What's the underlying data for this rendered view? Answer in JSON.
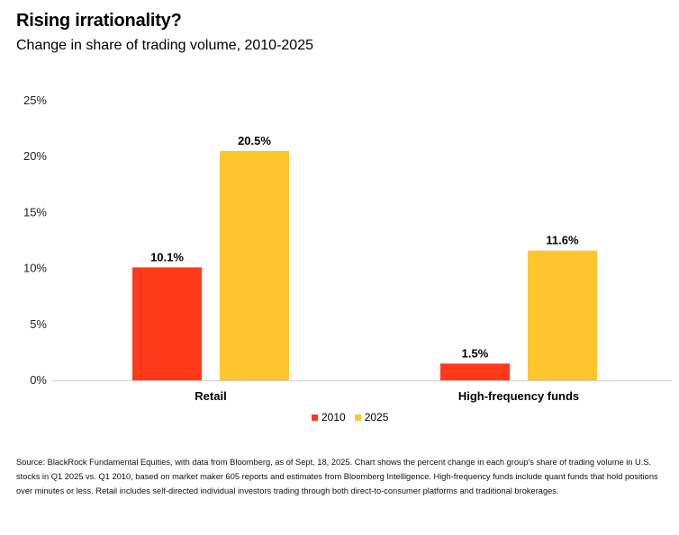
{
  "title": "Rising irrationality?",
  "subtitle": "Change in share of trading volume, 2010-2025",
  "source": "Source: BlackRock Fundamental Equities, with data from Bloomberg, as of Sept. 18, 2025. Chart shows the percent change in each group's share of trading volume in U.S. stocks in Q1 2025 vs. Q1 2010, based on market maker 605 reports and estimates from Bloomberg Intelligence. High-frequency funds include quant funds that hold positions over minutes or less. Retail includes self-directed individual investors trading through both direct-to-consumer platforms and traditional brokerages.",
  "chart_data": {
    "type": "bar",
    "title": "Rising irrationality?",
    "subtitle": "Change in share of trading volume, 2010-2025",
    "xlabel": "",
    "ylabel": "",
    "categories": [
      "Retail",
      "High-frequency funds"
    ],
    "series": [
      {
        "name": "2010",
        "values": [
          10.1,
          1.5
        ],
        "labels": [
          "10.1%",
          "1.5%"
        ],
        "color": "#ff3a1a"
      },
      {
        "name": "2025",
        "values": [
          20.5,
          11.6
        ],
        "labels": [
          "20.5%",
          "11.6%"
        ],
        "color": "#ffc52e"
      }
    ],
    "ylim": [
      0,
      25
    ],
    "yticks": [
      0,
      5,
      10,
      15,
      20,
      25
    ],
    "ytick_labels": [
      "0%",
      "5%",
      "10%",
      "15%",
      "20%",
      "25%"
    ],
    "grid": false,
    "legend": "bottom-center"
  }
}
